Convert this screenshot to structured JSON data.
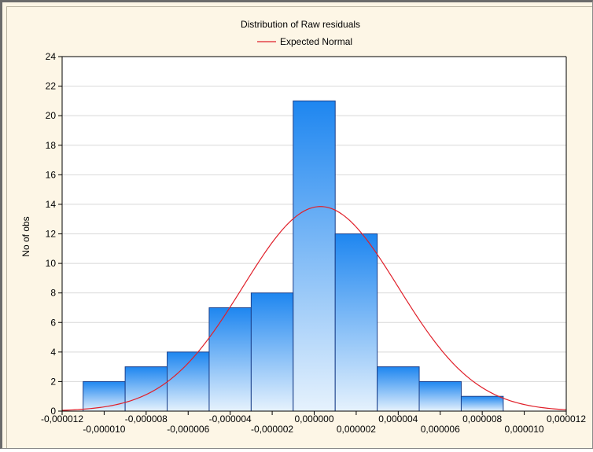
{
  "chart_data": {
    "type": "bar",
    "title": "Distribution of Raw residuals",
    "ylabel": "No of obs",
    "xlabel": "",
    "legend": {
      "entries": [
        "Expected Normal"
      ],
      "position": "top-center"
    },
    "bin_edges": [
      -1.1e-05,
      -9e-06,
      -7e-06,
      -5e-06,
      -3e-06,
      -1e-06,
      1e-06,
      3e-06,
      5e-06,
      7e-06,
      9e-06
    ],
    "values": [
      2,
      3,
      4,
      7,
      8,
      21,
      12,
      3,
      2,
      1
    ],
    "xlim": [
      -1.2e-05,
      1.2e-05
    ],
    "ylim": [
      0,
      24
    ],
    "y_ticks": [
      0,
      2,
      4,
      6,
      8,
      10,
      12,
      14,
      16,
      18,
      20,
      22,
      24
    ],
    "x_ticks_row1": [
      "-0,000012",
      "-0,000008",
      "-0,000004",
      "0,000000",
      "0,000004",
      "0,000008",
      "0,000012"
    ],
    "x_ticks_row2": [
      "-0,000010",
      "-0,000006",
      "-0,000002",
      "0,000002",
      "0,000006",
      "0,000010"
    ],
    "normal_curve": {
      "name": "Expected Normal",
      "mean": 3e-07,
      "sd": 3.7e-06,
      "peak": 13.85
    },
    "grid": true,
    "colors": {
      "bar_top": "#1e86f0",
      "bar_bottom": "#e6f2fd",
      "bar_edge": "#1a3f8a",
      "curve": "#e0202a",
      "grid": "#d8d8d8"
    }
  }
}
